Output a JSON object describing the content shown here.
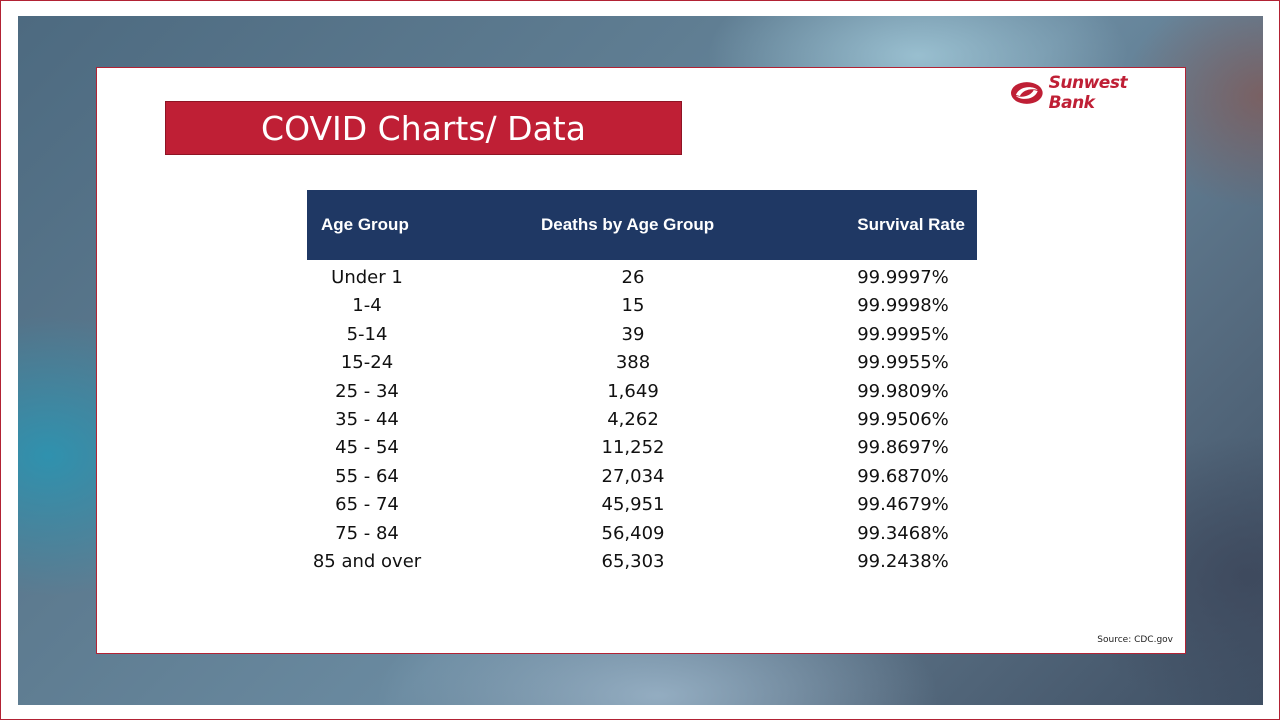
{
  "slide": {
    "title": "COVID Charts/ Data",
    "logo_text": "Sunwest Bank",
    "source": "Source: CDC.gov"
  },
  "colors": {
    "accent_red": "#bf1f35",
    "header_navy": "#1f3864"
  },
  "table": {
    "headers": [
      "Age Group",
      "Deaths  by Age Group",
      "Survival  Rate"
    ],
    "rows": [
      {
        "age": "Under 1",
        "deaths": "26",
        "rate": "99.9997%"
      },
      {
        "age": "1-4",
        "deaths": "15",
        "rate": "99.9998%"
      },
      {
        "age": "5-14",
        "deaths": "39",
        "rate": "99.9995%"
      },
      {
        "age": "15-24",
        "deaths": "388",
        "rate": "99.9955%"
      },
      {
        "age": "25 - 34",
        "deaths": "1,649",
        "rate": "99.9809%"
      },
      {
        "age": "35 - 44",
        "deaths": "4,262",
        "rate": "99.9506%"
      },
      {
        "age": "45 - 54",
        "deaths": "11,252",
        "rate": "99.8697%"
      },
      {
        "age": "55 - 64",
        "deaths": "27,034",
        "rate": "99.6870%"
      },
      {
        "age": "65 - 74",
        "deaths": "45,951",
        "rate": "99.4679%"
      },
      {
        "age": "75 - 84",
        "deaths": "56,409",
        "rate": "99.3468%"
      },
      {
        "age": "85 and over",
        "deaths": "65,303",
        "rate": "99.2438%"
      }
    ]
  }
}
